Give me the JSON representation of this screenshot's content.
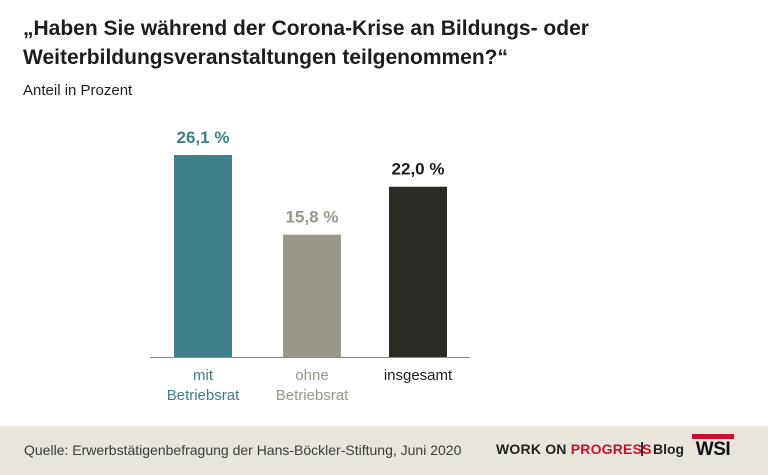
{
  "header": {
    "title": "„Haben Sie während der Corona-Krise an Bildungs- oder Weiterbildungsveranstaltungen teilgenommen?“",
    "subtitle": "Anteil in Prozent"
  },
  "chart_data": {
    "type": "bar",
    "title": "„Haben Sie während der Corona-Krise an Bildungs- oder Weiterbildungsveranstaltungen teilgenommen?“",
    "ylabel": "Anteil in Prozent",
    "ylim": [
      0,
      26.1
    ],
    "grid": false,
    "categories": [
      "mit Betriebsrat",
      "ohne Betriebsrat",
      "insgesamt"
    ],
    "category_lines": [
      [
        "mit",
        "Betriebsrat"
      ],
      [
        "ohne",
        "Betriebsrat"
      ],
      [
        "insgesamt"
      ]
    ],
    "values": [
      26.1,
      15.8,
      22.0
    ],
    "value_labels": [
      "26,1 %",
      "15,8 %",
      "22,0 %"
    ],
    "colors": [
      "#3f7f87",
      "#99968a",
      "#2b2a25"
    ],
    "label_colors": [
      "#3f7f87",
      "#99968a",
      "#1d1d1b"
    ]
  },
  "footer": {
    "source": "Quelle: Erwerbstätigenbefragung der Hans-Böckler-Stiftung, Juni 2020",
    "brand_part1": "WORK ON ",
    "brand_part2": "PROGRESS",
    "separator": "|",
    "blog": "Blog",
    "logo_text": "WSI",
    "accent_color": "#c8102e"
  }
}
